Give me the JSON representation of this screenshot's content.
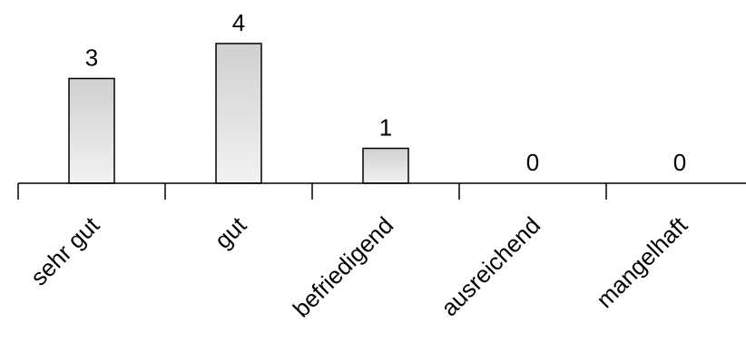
{
  "chart_data": {
    "type": "bar",
    "categories": [
      "sehr gut",
      "gut",
      "befriedigend",
      "ausreichend",
      "mangelhaft"
    ],
    "values": [
      3,
      4,
      1,
      0,
      0
    ],
    "data_labels": [
      "3",
      "4",
      "1",
      "0",
      "0"
    ],
    "title": "",
    "xlabel": "",
    "ylabel": "",
    "ylim": [
      0,
      4
    ],
    "grid": false,
    "legend": "none",
    "colors": {
      "bar_top": "#d0d0d0",
      "bar_bottom": "#f2f2f2",
      "stroke": "#000000"
    }
  }
}
